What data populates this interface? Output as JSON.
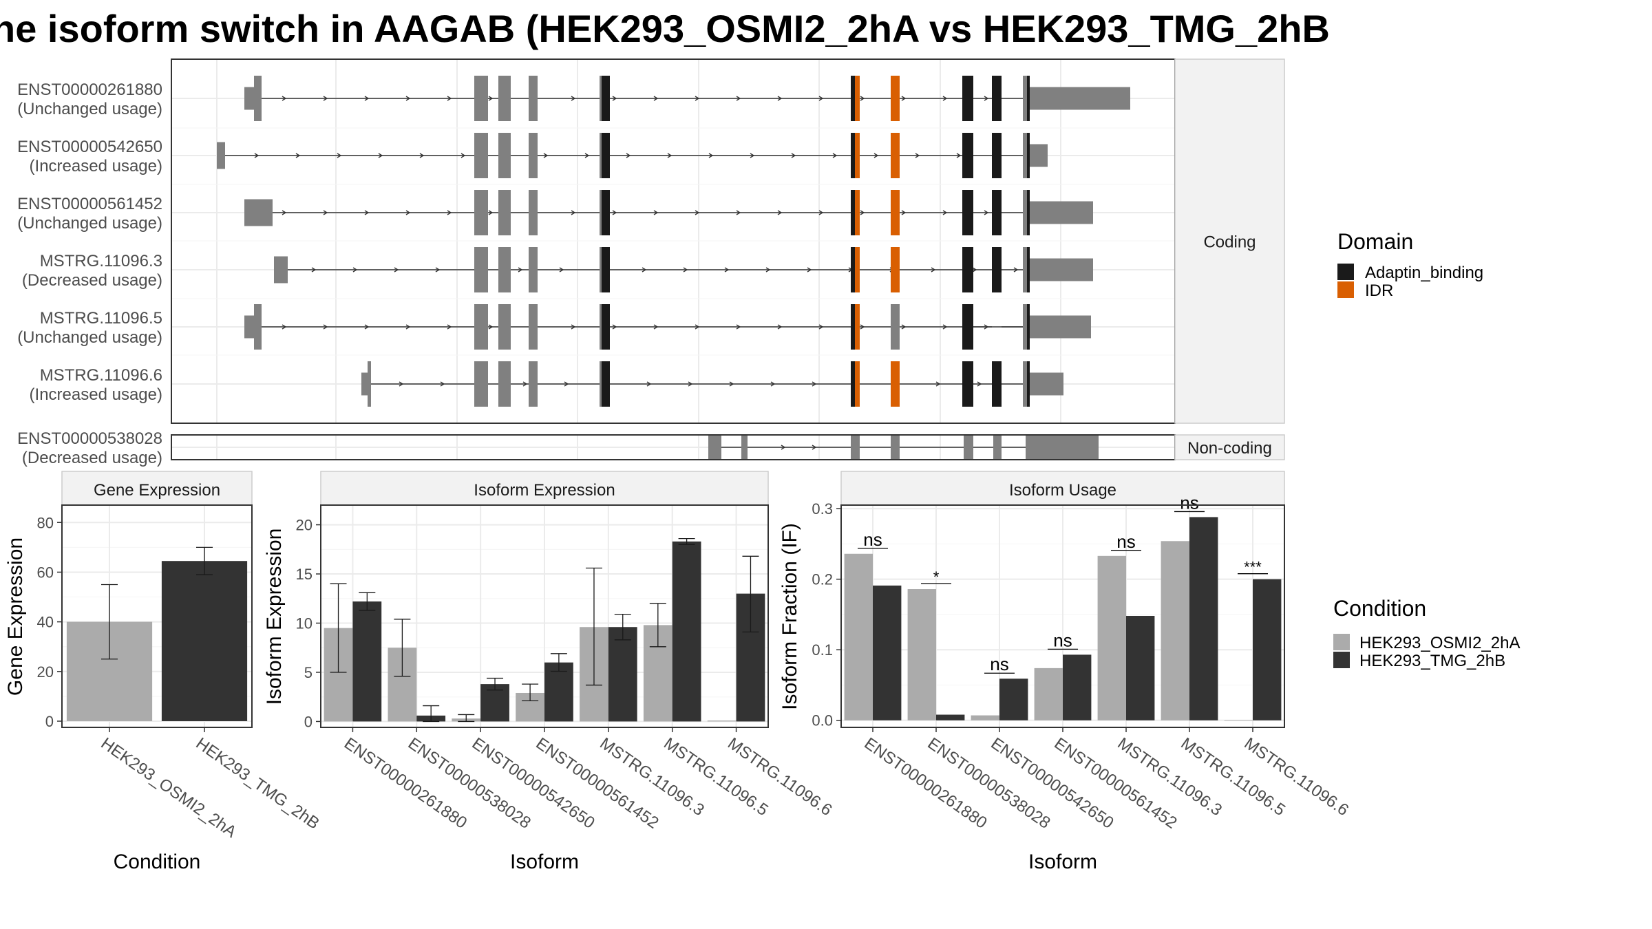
{
  "title": "he isoform switch in AAGAB (HEK293_OSMI2_2hA vs HEK293_TMG_2hB",
  "colors": {
    "exon": "#808080",
    "adaptin_binding": "#1a1a1a",
    "idr": "#d95f02",
    "condition_a": "#ababab",
    "condition_b": "#333333",
    "strip": "#f2f2f2",
    "grid": "#ebebeb",
    "text": "#4d4d4d"
  },
  "chart_data": [
    {
      "type": "gene-structure",
      "panels": [
        {
          "label": "Coding",
          "transcripts": [
            {
              "id": "ENST00000261880",
              "status": "(Unchanged usage)"
            },
            {
              "id": "ENST00000542650",
              "status": "(Increased usage)"
            },
            {
              "id": "ENST00000561452",
              "status": "(Unchanged usage)"
            },
            {
              "id": "MSTRG.11096.3",
              "status": "(Decreased usage)"
            },
            {
              "id": "MSTRG.11096.5",
              "status": "(Unchanged usage)"
            },
            {
              "id": "MSTRG.11096.6",
              "status": "(Increased usage)"
            }
          ]
        },
        {
          "label": "Non-coding",
          "transcripts": [
            {
              "id": "ENST00000538028",
              "status": "(Decreased usage)"
            }
          ]
        }
      ],
      "legend": {
        "title": "Domain",
        "entries": [
          {
            "label": "Adaptin_binding",
            "color": "#1a1a1a"
          },
          {
            "label": "IDR",
            "color": "#d95f02"
          }
        ]
      }
    },
    {
      "type": "bar",
      "strip": "Gene Expression",
      "xlabel": "Condition",
      "ylabel": "Gene Expression",
      "ylim": [
        -2.5,
        87
      ],
      "yticks": [
        0,
        20,
        40,
        60,
        80
      ],
      "categories": [
        "HEK293_OSMI2_2hA",
        "HEK293_TMG_2hB"
      ],
      "series": [
        {
          "values": [
            40,
            64.5
          ],
          "errors": [
            [
              25,
              55
            ],
            [
              59,
              70
            ]
          ]
        }
      ]
    },
    {
      "type": "bar",
      "strip": "Isoform Expression",
      "xlabel": "Isoform",
      "ylabel": "Isoform Expression",
      "ylim": [
        -0.6,
        22
      ],
      "yticks": [
        0,
        5,
        10,
        15,
        20
      ],
      "categories": [
        "ENST00000261880",
        "ENST00000538028",
        "ENST00000542650",
        "ENST00000561452",
        "MSTRG.11096.3",
        "MSTRG.11096.5",
        "MSTRG.11096.6"
      ],
      "series": [
        {
          "name": "HEK293_OSMI2_2hA",
          "values": [
            9.5,
            7.5,
            0.3,
            2.9,
            9.6,
            9.8,
            0.1
          ],
          "errors": [
            [
              5,
              14
            ],
            [
              4.6,
              10.4
            ],
            [
              0.0,
              0.7
            ],
            [
              2.1,
              3.8
            ],
            [
              3.7,
              15.6
            ],
            [
              7.6,
              12.0
            ],
            null
          ]
        },
        {
          "name": "HEK293_TMG_2hB",
          "values": [
            12.2,
            0.6,
            3.8,
            6.0,
            9.6,
            18.3,
            13.0
          ],
          "errors": [
            [
              11.3,
              13.1
            ],
            [
              0.0,
              1.6
            ],
            [
              3.2,
              4.4
            ],
            [
              5.1,
              6.9
            ],
            [
              8.3,
              10.9
            ],
            [
              18.0,
              18.6
            ],
            [
              9.1,
              16.8
            ]
          ]
        }
      ]
    },
    {
      "type": "bar",
      "strip": "Isoform Usage",
      "xlabel": "Isoform",
      "ylabel": "Isoform Fraction (IF)",
      "ylim": [
        -0.01,
        0.305
      ],
      "yticks": [
        0.0,
        0.1,
        0.2,
        0.3
      ],
      "ytick_labels": [
        "0.0",
        "0.1",
        "0.2",
        "0.3"
      ],
      "categories": [
        "ENST00000261880",
        "ENST00000538028",
        "ENST00000542650",
        "ENST00000561452",
        "MSTRG.11096.3",
        "MSTRG.11096.5",
        "MSTRG.11096.6"
      ],
      "series": [
        {
          "name": "HEK293_OSMI2_2hA",
          "values": [
            0.236,
            0.186,
            0.007,
            0.074,
            0.233,
            0.254,
            0.0
          ]
        },
        {
          "name": "HEK293_TMG_2hB",
          "values": [
            0.191,
            0.008,
            0.059,
            0.093,
            0.148,
            0.288,
            0.2
          ]
        }
      ],
      "significance": [
        "ns",
        "*",
        "ns",
        "ns",
        "ns",
        "ns",
        "***"
      ]
    }
  ],
  "condition_legend": {
    "title": "Condition",
    "entries": [
      {
        "label": "HEK293_OSMI2_2hA",
        "color": "#ababab"
      },
      {
        "label": "HEK293_TMG_2hB",
        "color": "#333333"
      }
    ]
  }
}
